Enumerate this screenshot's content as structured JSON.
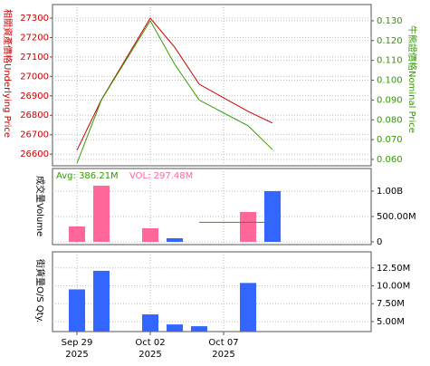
{
  "chart_data": [
    {
      "type": "line",
      "categories": [
        "Sep 29",
        null,
        null,
        "Oct 02",
        null,
        null,
        "Oct 07",
        null,
        null
      ],
      "category_sublabels": [
        "2025",
        null,
        null,
        "2025",
        null,
        null,
        "2025",
        null,
        null
      ],
      "ylabel": "相關資產價格Underlying Price",
      "y2label": "牛熊證價格Nominal Price",
      "ylim": [
        26540,
        27370
      ],
      "yticks": [
        26600,
        26700,
        26800,
        26900,
        27000,
        27100,
        27200,
        27300
      ],
      "y2lim": [
        0.0568,
        0.1382
      ],
      "y2ticks": [
        {
          "value": 0.06,
          "label": "0.060"
        },
        {
          "value": 0.07,
          "label": "0.070"
        },
        {
          "value": 0.08,
          "label": "0.080"
        },
        {
          "value": 0.09,
          "label": "0.090"
        },
        {
          "value": 0.1,
          "label": "0.100"
        },
        {
          "value": 0.11,
          "label": "0.110"
        },
        {
          "value": 0.12,
          "label": "0.120"
        },
        {
          "value": 0.13,
          "label": "0.130"
        }
      ],
      "grid": true,
      "series": [
        {
          "name": "Underlying Price",
          "color": "#cc0000",
          "x": [
            0,
            1,
            3,
            4,
            5,
            7,
            8
          ],
          "values": [
            26620,
            26880,
            27300,
            27150,
            26960,
            26820,
            26760
          ]
        },
        {
          "name": "Nominal Price",
          "color": "#339900",
          "axis": "y2",
          "x": [
            0,
            1,
            3,
            4,
            5,
            7,
            8
          ],
          "values": [
            0.058,
            0.09,
            0.13,
            0.108,
            0.09,
            0.077,
            0.065
          ]
        }
      ]
    },
    {
      "type": "bar",
      "ylabel": "成交量Volume",
      "annotation_avg": "Avg: 386.21M",
      "annotation_vol": "VOL: 297.48M",
      "ylim": [
        -54000000,
        1446000000
      ],
      "yticks": [
        0,
        {
          "value": 500000000,
          "label": "500.00M"
        },
        {
          "value": 1000000000,
          "label": "1.00B"
        }
      ],
      "grid": true,
      "x": [
        0,
        1,
        3,
        4,
        7,
        8
      ],
      "values": [
        304000000,
        1107000000,
        268000000,
        71000000,
        589000000,
        1000000000
      ],
      "colors": [
        "#ff6699",
        "#ff6699",
        "#ff6699",
        "#3366ff",
        "#ff6699",
        "#3366ff"
      ],
      "avg": {
        "color": "#339900",
        "x": [
          5,
          8
        ],
        "values": [
          386210000,
          386210000
        ]
      }
    },
    {
      "type": "bar",
      "ylabel": "街貨量O/S Qty.",
      "ylim": [
        3600000,
        14750000
      ],
      "yticks": [
        {
          "value": 5000000,
          "label": "5.00M"
        },
        {
          "value": 7500000,
          "label": "7.50M"
        },
        {
          "value": 10000000,
          "label": "10.00M"
        },
        {
          "value": 12500000,
          "label": "12.50M"
        }
      ],
      "grid": true,
      "x": [
        0,
        1,
        3,
        4,
        5,
        7
      ],
      "values": [
        9500000,
        12100000,
        6000000,
        4600000,
        4350000,
        10400000
      ],
      "colors": [
        "#3366ff",
        "#3366ff",
        "#3366ff",
        "#3366ff",
        "#3366ff",
        "#3366ff"
      ]
    }
  ]
}
